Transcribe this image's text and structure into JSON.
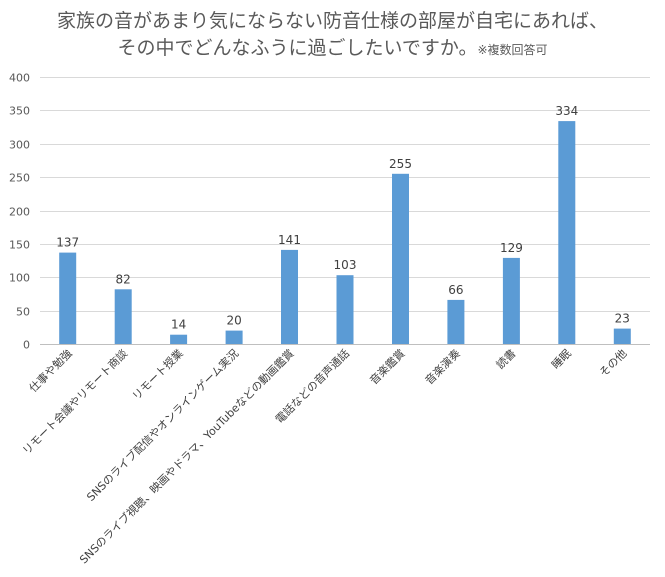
{
  "title": {
    "line1": "家族の音があまり気にならない防音仕様の部屋が自宅にあれば、",
    "line2": "その中でどんなふうに過ごしたいですか。",
    "note": "※複数回答可"
  },
  "colors": {
    "bar": "#5B9BD5",
    "grid": "#D9D9D9",
    "axis": "#BFBFBF"
  },
  "chart_data": {
    "type": "bar",
    "title": "家族の音があまり気にならない防音仕様の部屋が自宅にあれば、その中でどんなふうに過ごしたいですか。※複数回答可",
    "xlabel": "",
    "ylabel": "",
    "ylim": [
      0,
      400
    ],
    "yticks": [
      0,
      50,
      100,
      150,
      200,
      250,
      300,
      350,
      400
    ],
    "grid": true,
    "legend": "none",
    "categories": [
      "仕事や勉強",
      "リモート会議やリモート商談",
      "リモート授業",
      "SNSのライブ配信やオンラインゲーム実況",
      "SNSのライブ視聴、映画やドラマ、YouTubeなどの動画鑑賞",
      "電話などの音声通話",
      "音楽鑑賞",
      "音楽演奏",
      "読書",
      "睡眠",
      "その他"
    ],
    "values": [
      137,
      82,
      14,
      20,
      141,
      103,
      255,
      66,
      129,
      334,
      23
    ]
  }
}
